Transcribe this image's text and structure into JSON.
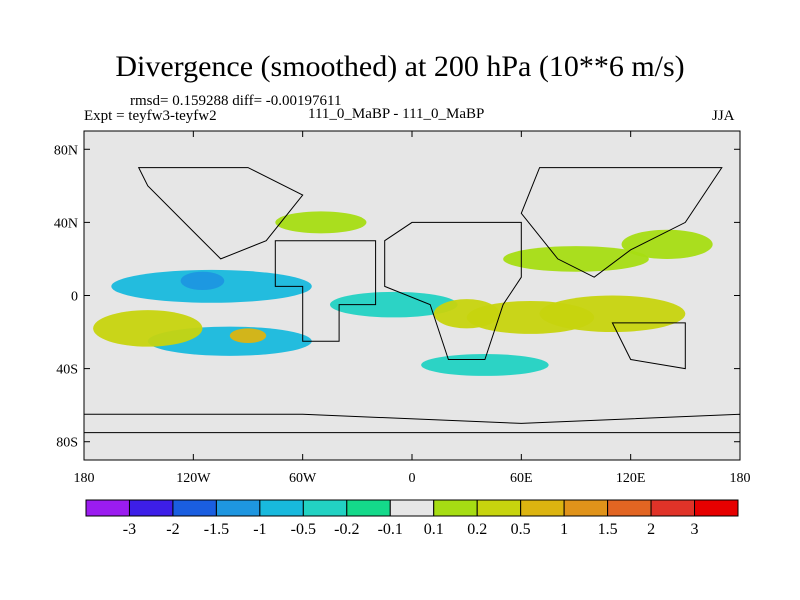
{
  "chart_data": {
    "type": "heatmap",
    "title": "Divergence (smoothed) at 200 hPa (10**6 m/s)",
    "stats": "rmsd= 0.159288 diff= -0.00197611",
    "experiment": "Expt = teyfw3-teyfw2",
    "case": "111_0_MaBP - 111_0_MaBP",
    "season": "JJA",
    "x_ticks": [
      "180",
      "120W",
      "60W",
      "0",
      "60E",
      "120E",
      "180"
    ],
    "x_tick_values": [
      -180,
      -120,
      -60,
      0,
      60,
      120,
      180
    ],
    "y_ticks": [
      "80N",
      "40N",
      "0",
      "40S",
      "80S"
    ],
    "y_tick_values": [
      80,
      40,
      0,
      -40,
      -80
    ],
    "xlim": [
      -180,
      180
    ],
    "ylim": [
      -90,
      90
    ],
    "colorbar_labels": [
      "-3",
      "-2",
      "-1.5",
      "-1",
      "-0.5",
      "-0.2",
      "-0.1",
      "0.1",
      "0.2",
      "0.5",
      "1",
      "1.5",
      "2",
      "3"
    ],
    "colorbar_colors": [
      "#9b1cf0",
      "#3d1ee8",
      "#1a5ee0",
      "#1e96e0",
      "#18b9dd",
      "#22d2c3",
      "#14d98a",
      "#e6e6e6",
      "#a6dd13",
      "#c7d40e",
      "#dcb410",
      "#e0931a",
      "#e26522",
      "#e03328",
      "#e60000"
    ],
    "contour_regions": [
      {
        "name": "neg-band-west-tropics",
        "lon": -110,
        "lat": 5,
        "rlon": 55,
        "rlat": 9,
        "level": -0.5
      },
      {
        "name": "neg-core-west",
        "lon": -115,
        "lat": 8,
        "rlon": 12,
        "rlat": 5,
        "level": -1
      },
      {
        "name": "neg-band-south-west",
        "lon": -100,
        "lat": -25,
        "rlon": 45,
        "rlat": 8,
        "level": -0.5
      },
      {
        "name": "neg-band-central",
        "lon": -10,
        "lat": -5,
        "rlon": 35,
        "rlat": 7,
        "level": -0.2
      },
      {
        "name": "neg-band-africa-south",
        "lon": 40,
        "lat": -38,
        "rlon": 35,
        "rlat": 6,
        "level": -0.2
      },
      {
        "name": "pos-band-south-pacific",
        "lon": -145,
        "lat": -18,
        "rlon": 30,
        "rlat": 10,
        "level": 0.5
      },
      {
        "name": "pos-core-south-pacific",
        "lon": -90,
        "lat": -22,
        "rlon": 10,
        "rlat": 4,
        "level": 1
      },
      {
        "name": "pos-band-indian",
        "lon": 65,
        "lat": -12,
        "rlon": 35,
        "rlat": 9,
        "level": 0.5
      },
      {
        "name": "pos-band-west-pacific",
        "lon": 110,
        "lat": -10,
        "rlon": 40,
        "rlat": 10,
        "level": 0.5
      },
      {
        "name": "pos-band-north-asia",
        "lon": 90,
        "lat": 20,
        "rlon": 40,
        "rlat": 7,
        "level": 0.2
      },
      {
        "name": "pos-band-north-pacific",
        "lon": 140,
        "lat": 28,
        "rlon": 25,
        "rlat": 8,
        "level": 0.2
      },
      {
        "name": "pos-band-central-africa",
        "lon": 30,
        "lat": -10,
        "rlon": 18,
        "rlat": 8,
        "level": 0.5
      },
      {
        "name": "pos-band-north-atlantic",
        "lon": -50,
        "lat": 40,
        "rlon": 25,
        "rlat": 6,
        "level": 0.2
      }
    ]
  }
}
